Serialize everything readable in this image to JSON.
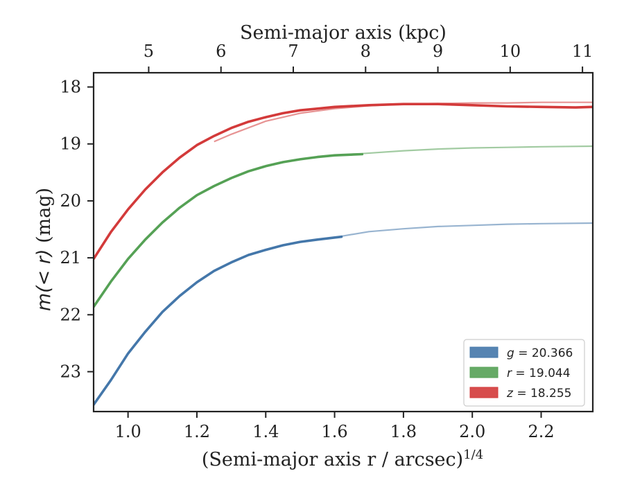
{
  "chart_data": {
    "type": "line",
    "title": "",
    "xlabel": "(Semi-major axis r / arcsec)",
    "xlabel_exponent": "1/4",
    "ylabel": "m(< r) (mag)",
    "ylabel_suffix": " (mag)",
    "top_axis_label": "Semi-major axis (kpc)",
    "xlim": [
      0.9,
      2.35
    ],
    "ylim": [
      23.7,
      17.75
    ],
    "y_inverted": true,
    "xticks": [
      1.0,
      1.2,
      1.4,
      1.6,
      1.8,
      2.0,
      2.2
    ],
    "xtick_labels": [
      "1.0",
      "1.2",
      "1.4",
      "1.6",
      "1.8",
      "2.0",
      "2.2"
    ],
    "yticks": [
      18,
      19,
      20,
      21,
      22,
      23
    ],
    "ytick_labels": [
      "18",
      "19",
      "20",
      "21",
      "22",
      "23"
    ],
    "top_ticks": [
      5,
      6,
      7,
      8,
      9,
      10,
      11
    ],
    "top_tick_labels": [
      "5",
      "6",
      "7",
      "8",
      "9",
      "10",
      "11"
    ],
    "top_ticks_x": [
      1.06,
      1.27,
      1.48,
      1.69,
      1.9,
      2.11,
      2.32
    ],
    "grid": false,
    "legend_position": "bottom-right",
    "series": [
      {
        "name": "g = 20.366",
        "band": "g",
        "value": "20.366",
        "color": "#4477aa",
        "x_measured": [
          0.9,
          0.95,
          1.0,
          1.05,
          1.1,
          1.15,
          1.2,
          1.25,
          1.3,
          1.35,
          1.4,
          1.45,
          1.5,
          1.55,
          1.62
        ],
        "y_measured": [
          23.58,
          23.15,
          22.68,
          22.3,
          21.95,
          21.67,
          21.43,
          21.23,
          21.08,
          20.95,
          20.86,
          20.78,
          20.72,
          20.68,
          20.63
        ],
        "x_model": [
          1.62,
          1.7,
          1.8,
          1.9,
          2.0,
          2.1,
          2.2,
          2.35
        ],
        "y_model": [
          20.62,
          20.54,
          20.49,
          20.45,
          20.43,
          20.41,
          20.4,
          20.39
        ]
      },
      {
        "name": "r = 19.044",
        "band": "r",
        "value": "19.044",
        "color": "#55a155",
        "x_measured": [
          0.9,
          0.95,
          1.0,
          1.05,
          1.1,
          1.15,
          1.2,
          1.25,
          1.3,
          1.35,
          1.4,
          1.45,
          1.5,
          1.55,
          1.6,
          1.68
        ],
        "y_measured": [
          21.86,
          21.42,
          21.02,
          20.68,
          20.38,
          20.12,
          19.9,
          19.74,
          19.6,
          19.48,
          19.39,
          19.32,
          19.27,
          19.23,
          19.2,
          19.18
        ],
        "x_model": [
          1.68,
          1.8,
          1.9,
          2.0,
          2.1,
          2.2,
          2.35
        ],
        "y_model": [
          19.17,
          19.12,
          19.09,
          19.07,
          19.06,
          19.05,
          19.04
        ]
      },
      {
        "name": "z = 18.255",
        "band": "z",
        "value": "18.255",
        "color": "#d33a3a",
        "x_measured": [
          0.9,
          0.95,
          1.0,
          1.05,
          1.1,
          1.15,
          1.2,
          1.25,
          1.3,
          1.35,
          1.4,
          1.45,
          1.5,
          1.55,
          1.6,
          1.7,
          1.8,
          1.9,
          2.0,
          2.1,
          2.2,
          2.3,
          2.35
        ],
        "y_measured": [
          21.02,
          20.55,
          20.15,
          19.8,
          19.5,
          19.24,
          19.02,
          18.86,
          18.72,
          18.61,
          18.53,
          18.46,
          18.41,
          18.38,
          18.35,
          18.32,
          18.3,
          18.3,
          18.32,
          18.34,
          18.35,
          18.36,
          18.35
        ],
        "x_model": [
          1.25,
          1.3,
          1.4,
          1.5,
          1.6,
          1.7,
          1.8,
          1.9,
          2.0,
          2.1,
          2.2,
          2.35
        ],
        "y_model": [
          18.96,
          18.83,
          18.6,
          18.46,
          18.38,
          18.33,
          18.3,
          18.29,
          18.28,
          18.28,
          18.27,
          18.27
        ]
      }
    ]
  }
}
